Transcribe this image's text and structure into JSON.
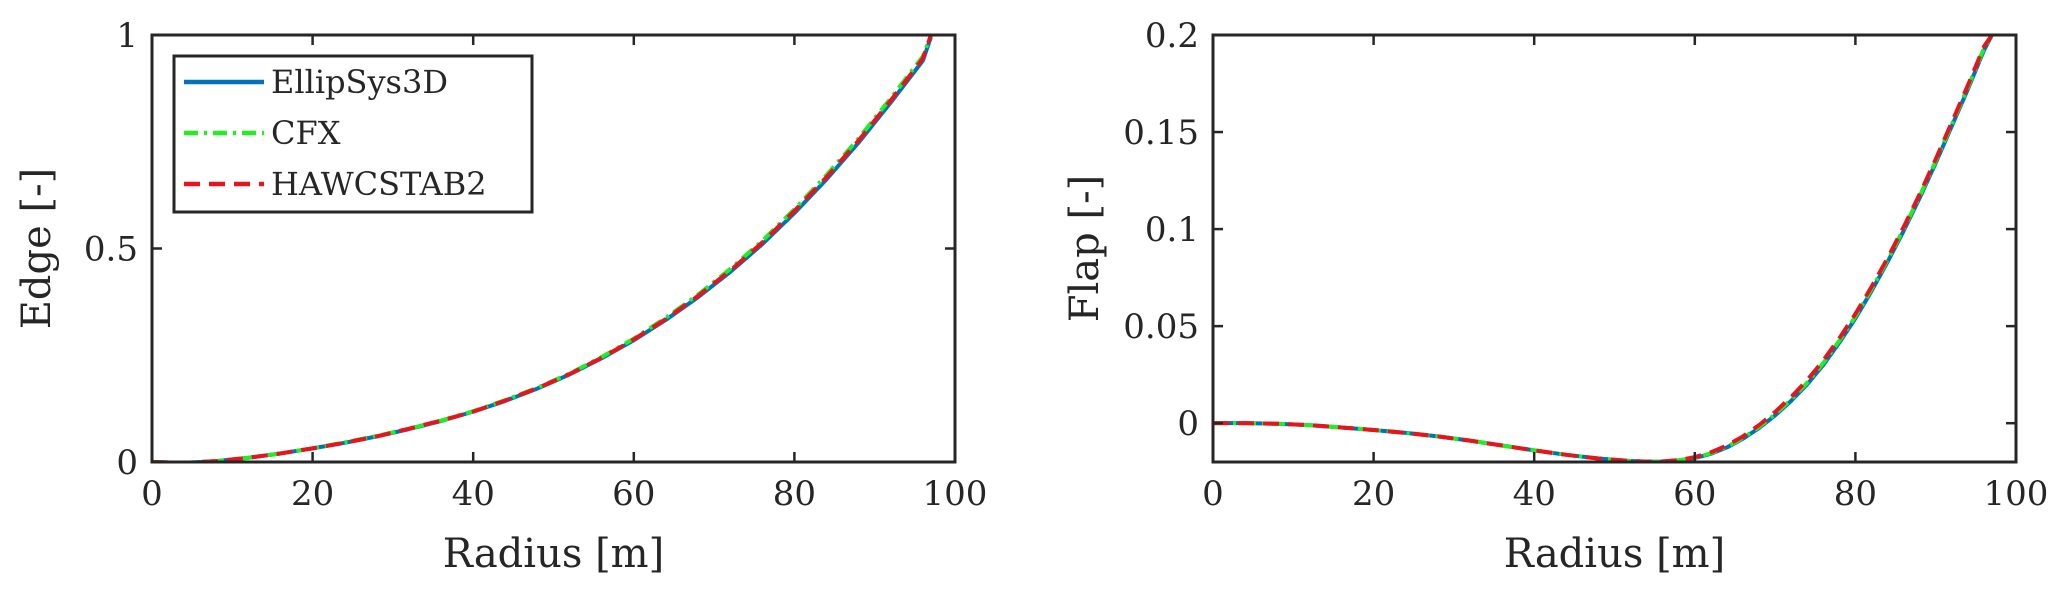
{
  "chart_data": [
    {
      "type": "line",
      "xlabel": "Radius [m]",
      "ylabel": "Edge [-]",
      "xlim": [
        0,
        100
      ],
      "ylim": [
        0,
        1
      ],
      "xticks": [
        0,
        20,
        40,
        60,
        80,
        100
      ],
      "xtick_labels": [
        "0",
        "20",
        "40",
        "60",
        "80",
        "100"
      ],
      "yticks": [
        0,
        0.5,
        1
      ],
      "ytick_labels": [
        "0",
        "0.5",
        "1"
      ],
      "grid": false,
      "legend_position": "top-left",
      "x": [
        0,
        4,
        8,
        12,
        16,
        20,
        24,
        28,
        32,
        36,
        40,
        44,
        48,
        52,
        56,
        60,
        64,
        68,
        72,
        76,
        80,
        84,
        88,
        92,
        96,
        97
      ],
      "series": [
        {
          "name": "EllipSys3D",
          "color": "#0072BD",
          "style": "solid",
          "values": [
            0,
            -0.002,
            0.002,
            0.01,
            0.02,
            0.032,
            0.045,
            0.06,
            0.077,
            0.096,
            0.118,
            0.143,
            0.172,
            0.205,
            0.243,
            0.285,
            0.333,
            0.386,
            0.445,
            0.51,
            0.583,
            0.662,
            0.748,
            0.842,
            0.94,
            0.995
          ]
        },
        {
          "name": "CFX",
          "color": "#22EE22",
          "style": "dashdot",
          "values": [
            0,
            -0.002,
            0.002,
            0.01,
            0.02,
            0.032,
            0.046,
            0.061,
            0.078,
            0.097,
            0.119,
            0.145,
            0.174,
            0.207,
            0.246,
            0.289,
            0.338,
            0.392,
            0.452,
            0.518,
            0.592,
            0.672,
            0.758,
            0.852,
            0.95,
            1.0
          ]
        },
        {
          "name": "HAWCSTAB2",
          "color": "#E8141C",
          "style": "dashed",
          "values": [
            0,
            -0.002,
            0.002,
            0.01,
            0.02,
            0.032,
            0.045,
            0.06,
            0.078,
            0.097,
            0.118,
            0.144,
            0.173,
            0.206,
            0.244,
            0.287,
            0.335,
            0.389,
            0.448,
            0.514,
            0.588,
            0.667,
            0.753,
            0.847,
            0.945,
            1.0
          ]
        }
      ]
    },
    {
      "type": "line",
      "xlabel": "Radius [m]",
      "ylabel": "Flap [-]",
      "xlim": [
        0,
        100
      ],
      "ylim": [
        -0.02,
        0.2
      ],
      "xticks": [
        0,
        20,
        40,
        60,
        80,
        100
      ],
      "xtick_labels": [
        "0",
        "20",
        "40",
        "60",
        "80",
        "100"
      ],
      "yticks": [
        0,
        0.05,
        0.1,
        0.15,
        0.2
      ],
      "ytick_labels": [
        "0",
        "0.05",
        "0.1",
        "0.15",
        "0.2"
      ],
      "grid": false,
      "legend_position": "none",
      "x": [
        0,
        4,
        8,
        12,
        16,
        20,
        24,
        28,
        32,
        36,
        40,
        44,
        48,
        52,
        54,
        56,
        58,
        60,
        62,
        64,
        66,
        68,
        70,
        72,
        74,
        76,
        78,
        80,
        82,
        84,
        86,
        88,
        90,
        92,
        94,
        96,
        97
      ],
      "series": [
        {
          "name": "EllipSys3D",
          "color": "#0072BD",
          "style": "solid",
          "values": [
            0,
            0,
            -0.0003,
            -0.001,
            -0.0022,
            -0.0035,
            -0.005,
            -0.0068,
            -0.009,
            -0.0115,
            -0.014,
            -0.0163,
            -0.0182,
            -0.0195,
            -0.0198,
            -0.0198,
            -0.0192,
            -0.018,
            -0.0158,
            -0.0125,
            -0.008,
            -0.0025,
            0.004,
            0.0115,
            0.02,
            0.03,
            0.0415,
            0.054,
            0.068,
            0.083,
            0.099,
            0.116,
            0.134,
            0.153,
            0.172,
            0.192,
            0.2
          ]
        },
        {
          "name": "CFX",
          "color": "#22EE22",
          "style": "dashdot",
          "values": [
            0,
            0,
            -0.0003,
            -0.001,
            -0.0022,
            -0.0035,
            -0.005,
            -0.0068,
            -0.009,
            -0.0115,
            -0.014,
            -0.0163,
            -0.0182,
            -0.0195,
            -0.0198,
            -0.0198,
            -0.0191,
            -0.0178,
            -0.0155,
            -0.0122,
            -0.0076,
            -0.002,
            0.0046,
            0.0122,
            0.0208,
            0.031,
            0.0425,
            0.055,
            0.069,
            0.084,
            0.1,
            0.117,
            0.135,
            0.154,
            0.173,
            0.193,
            0.2
          ]
        },
        {
          "name": "HAWCSTAB2",
          "color": "#E8141C",
          "style": "dashed",
          "values": [
            0,
            0,
            -0.0003,
            -0.001,
            -0.0022,
            -0.0035,
            -0.005,
            -0.0068,
            -0.009,
            -0.0115,
            -0.014,
            -0.0163,
            -0.0182,
            -0.0195,
            -0.0198,
            -0.0197,
            -0.019,
            -0.0175,
            -0.015,
            -0.0115,
            -0.0068,
            -0.001,
            0.0058,
            0.0135,
            0.0222,
            0.0323,
            0.0438,
            0.0563,
            0.0702,
            0.085,
            0.101,
            0.118,
            0.136,
            0.155,
            0.174,
            0.194,
            0.2
          ]
        }
      ]
    }
  ]
}
